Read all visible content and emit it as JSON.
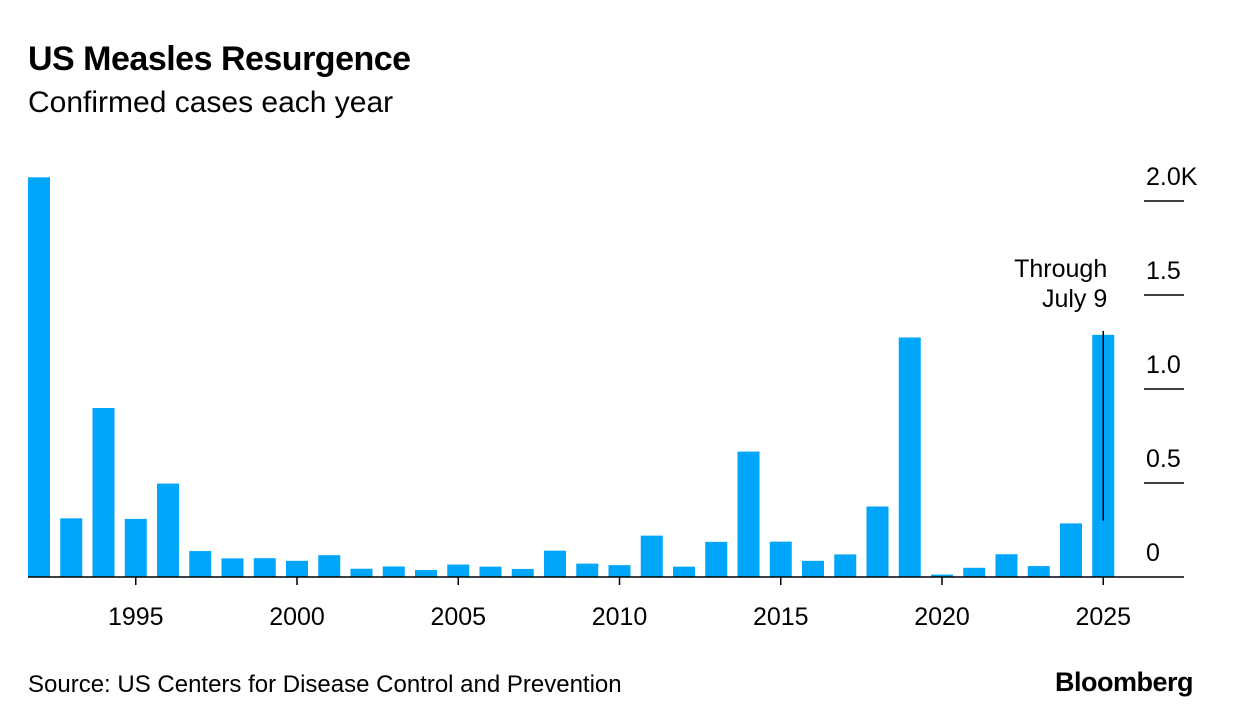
{
  "chart_data": {
    "type": "bar",
    "title": "US Measles Resurgence",
    "subtitle": "Confirmed cases each year",
    "x": [
      1992,
      1993,
      1994,
      1995,
      1996,
      1997,
      1998,
      1999,
      2000,
      2001,
      2002,
      2003,
      2004,
      2005,
      2006,
      2007,
      2008,
      2009,
      2010,
      2011,
      2012,
      2013,
      2014,
      2015,
      2016,
      2017,
      2018,
      2019,
      2020,
      2021,
      2022,
      2023,
      2024,
      2025
    ],
    "values": [
      2126,
      312,
      899,
      309,
      497,
      138,
      99,
      100,
      86,
      116,
      44,
      56,
      37,
      66,
      55,
      43,
      140,
      71,
      63,
      220,
      55,
      187,
      667,
      188,
      86,
      120,
      375,
      1274,
      13,
      49,
      121,
      58,
      285,
      1288
    ],
    "x_ticks": [
      "1995",
      "2000",
      "2005",
      "2010",
      "2015",
      "2020",
      "2025"
    ],
    "x_tick_values": [
      1995,
      2000,
      2005,
      2010,
      2015,
      2020,
      2025
    ],
    "y_ticks": [
      "0",
      "0.5",
      "1.0",
      "1.5",
      "2.0K"
    ],
    "y_tick_values": [
      0,
      500,
      1000,
      1500,
      2000
    ],
    "ylim": [
      0,
      2000
    ],
    "y_axis_side": "right",
    "bar_color": "#00a6f9",
    "annotation": {
      "x": 2025,
      "lines": [
        "Through",
        "July 9"
      ]
    },
    "xlabel": "",
    "ylabel": "",
    "grid": false
  },
  "source": "Source: US Centers for Disease Control and Prevention",
  "brand": "Bloomberg"
}
